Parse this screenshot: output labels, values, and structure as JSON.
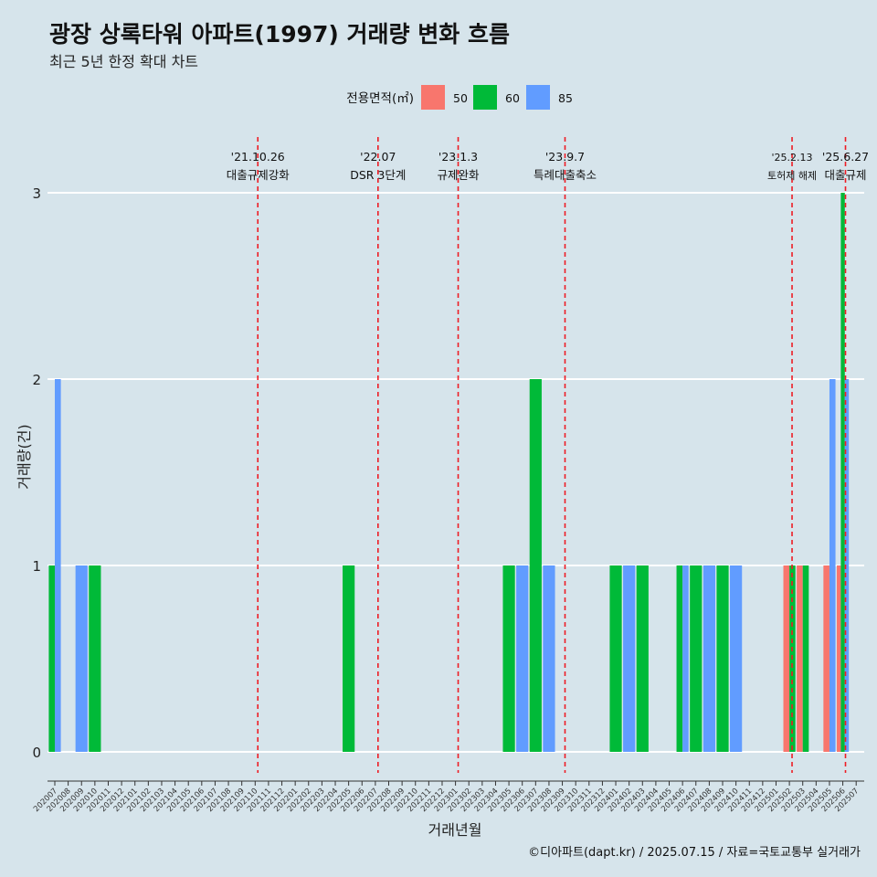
{
  "title": "광장 상록타워 아파트(1997) 거래량 변화 흐름",
  "subtitle": "최근 5년 한정 확대 차트",
  "caption": "©디아파트(dapt.kr) / 2025.07.15 / 자료=국토교통부 실거래가",
  "chart_data": {
    "type": "bar",
    "xlabel": "거래년월",
    "ylabel": "거래량(건)",
    "ylim": [
      0,
      3
    ],
    "yticks": [
      0,
      1,
      2,
      3
    ],
    "legend_title": "전용면적(㎡)",
    "legend_position": "top",
    "categories": [
      "202007",
      "202008",
      "202009",
      "202010",
      "202011",
      "202012",
      "202101",
      "202102",
      "202103",
      "202104",
      "202105",
      "202106",
      "202107",
      "202108",
      "202109",
      "202110",
      "202111",
      "202112",
      "202201",
      "202202",
      "202203",
      "202204",
      "202205",
      "202206",
      "202207",
      "202208",
      "202209",
      "202210",
      "202211",
      "202212",
      "202301",
      "202302",
      "202303",
      "202304",
      "202305",
      "202306",
      "202307",
      "202308",
      "202309",
      "202310",
      "202311",
      "202312",
      "202401",
      "202402",
      "202403",
      "202404",
      "202405",
      "202406",
      "202407",
      "202408",
      "202409",
      "202410",
      "202411",
      "202412",
      "202501",
      "202502",
      "202503",
      "202504",
      "202505",
      "202506",
      "202507"
    ],
    "series": [
      {
        "name": "50",
        "color": "#f8766d",
        "values": [
          0,
          0,
          0,
          0,
          0,
          0,
          0,
          0,
          0,
          0,
          0,
          0,
          0,
          0,
          0,
          0,
          0,
          0,
          0,
          0,
          0,
          0,
          0,
          0,
          0,
          0,
          0,
          0,
          0,
          0,
          0,
          0,
          0,
          0,
          0,
          0,
          0,
          0,
          0,
          0,
          0,
          0,
          0,
          0,
          0,
          0,
          0,
          0,
          0,
          0,
          0,
          0,
          0,
          0,
          0,
          1,
          1,
          0,
          1,
          1,
          0
        ]
      },
      {
        "name": "60",
        "color": "#00ba38",
        "values": [
          1,
          0,
          0,
          1,
          0,
          0,
          0,
          0,
          0,
          0,
          0,
          0,
          0,
          0,
          0,
          0,
          0,
          0,
          0,
          0,
          0,
          0,
          1,
          0,
          0,
          0,
          0,
          0,
          0,
          0,
          0,
          0,
          0,
          0,
          1,
          0,
          2,
          0,
          0,
          0,
          0,
          0,
          1,
          0,
          1,
          0,
          0,
          1,
          1,
          0,
          1,
          0,
          0,
          0,
          0,
          1,
          1,
          0,
          0,
          3,
          0
        ]
      },
      {
        "name": "85",
        "color": "#619cff",
        "values": [
          2,
          0,
          1,
          0,
          0,
          0,
          0,
          0,
          0,
          0,
          0,
          0,
          0,
          0,
          0,
          0,
          0,
          0,
          0,
          0,
          0,
          0,
          0,
          0,
          0,
          0,
          0,
          0,
          0,
          0,
          0,
          0,
          0,
          0,
          0,
          1,
          0,
          1,
          0,
          0,
          0,
          0,
          0,
          1,
          0,
          0,
          0,
          1,
          0,
          1,
          0,
          1,
          0,
          0,
          0,
          0,
          0,
          0,
          2,
          2,
          0
        ]
      }
    ],
    "events": [
      {
        "pos": 15.2,
        "date": "'21.10.26",
        "label": "대출규제강화",
        "size": "normal"
      },
      {
        "pos": 24.2,
        "date": "'22.07",
        "label": "DSR 3단계",
        "size": "normal"
      },
      {
        "pos": 30.2,
        "date": "'23.1.3",
        "label": "규제완화",
        "size": "normal"
      },
      {
        "pos": 38.2,
        "date": "'23.9.7",
        "label": "특례대출축소",
        "size": "normal"
      },
      {
        "pos": 55.2,
        "date": "'25.2.13",
        "label": "토허제 해제",
        "size": "small"
      },
      {
        "pos": 59.2,
        "date": "'25.6.27",
        "label": "대출규제",
        "size": "normal"
      }
    ]
  }
}
